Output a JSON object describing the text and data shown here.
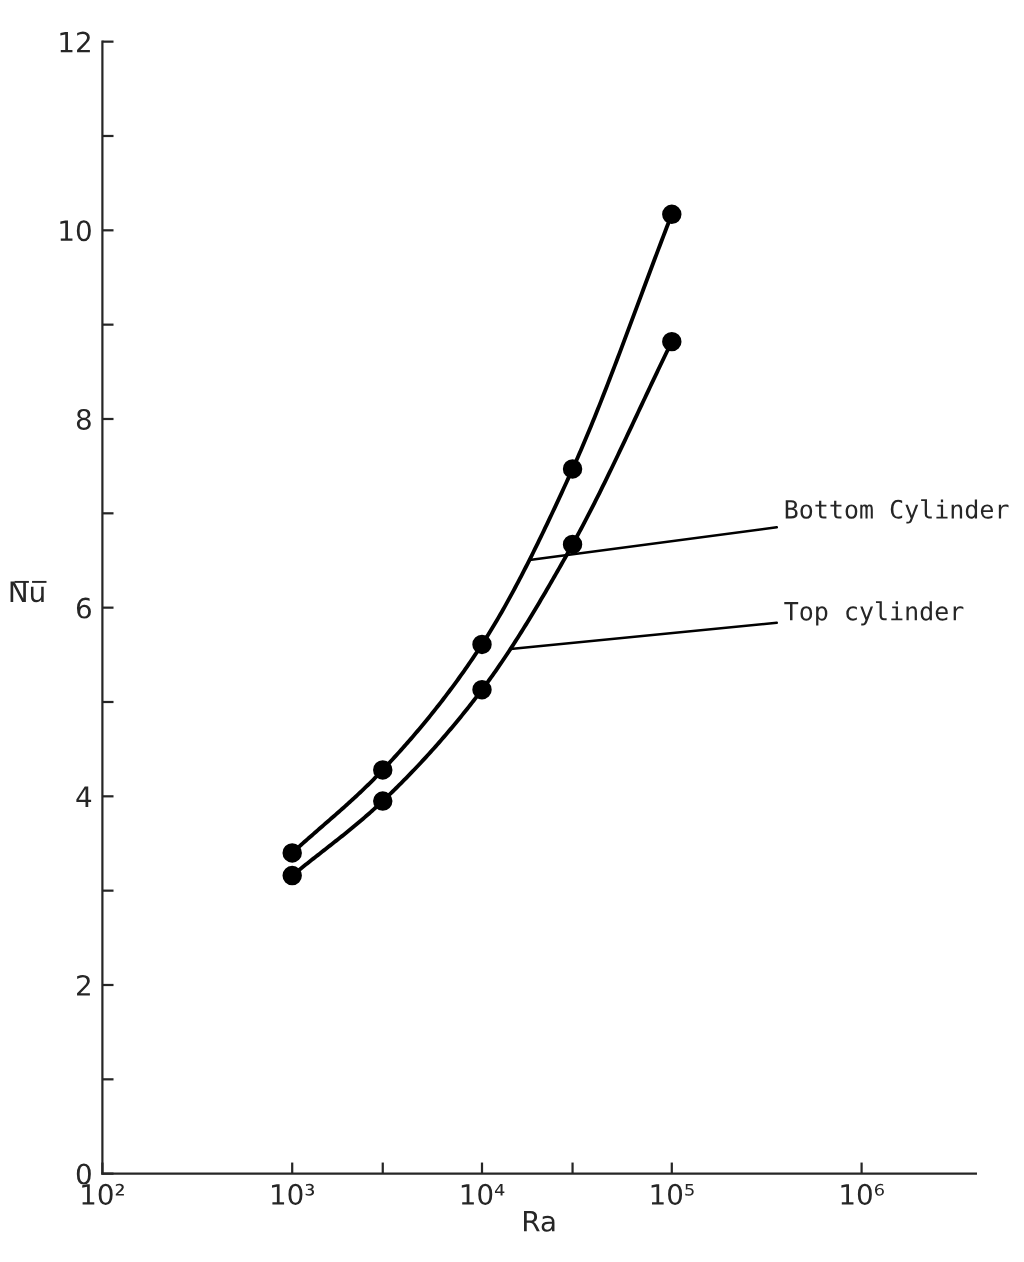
{
  "chart_data": {
    "type": "line",
    "xlabel": "Ra",
    "ylabel": "N̅u̅",
    "log": "x",
    "marker": "circle",
    "line_style": "solid",
    "grid": false,
    "legend": false,
    "xlim": [
      100,
      4000000
    ],
    "ylim": [
      0,
      12
    ],
    "xticks": [
      {
        "value": 100,
        "label": "10²"
      },
      {
        "value": 1000,
        "label": "10³"
      },
      {
        "value": 3000,
        "label": null
      },
      {
        "value": 10000,
        "label": "10⁴"
      },
      {
        "value": 30000,
        "label": null
      },
      {
        "value": 100000,
        "label": "10⁵"
      },
      {
        "value": 1000000,
        "label": "10⁶"
      }
    ],
    "yticks": [
      0,
      {
        "value": 1,
        "label": null
      },
      2,
      {
        "value": 3,
        "label": null
      },
      4,
      {
        "value": 5,
        "label": null
      },
      6,
      {
        "value": 7,
        "label": null
      },
      8,
      {
        "value": 9,
        "label": null
      },
      10,
      {
        "value": 11,
        "label": null
      },
      12
    ],
    "series": [
      {
        "name": "Bottom Cylinder",
        "color": "#000000",
        "x": [
          1000,
          3000,
          10000,
          30000,
          100000
        ],
        "values": [
          3.4,
          4.28,
          5.61,
          7.47,
          10.17
        ]
      },
      {
        "name": "Top cylinder",
        "color": "#000000",
        "x": [
          1000,
          3000,
          10000,
          30000,
          100000
        ],
        "values": [
          3.16,
          3.95,
          5.13,
          6.67,
          8.82
        ]
      }
    ]
  }
}
